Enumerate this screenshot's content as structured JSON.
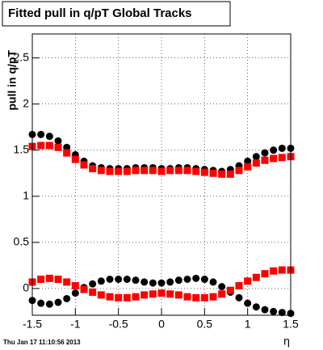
{
  "chart_data": {
    "type": "scatter",
    "title": "Fitted pull in q/pT  Global Tracks",
    "y_label": "pull in q/pT",
    "x_label": "η",
    "footer": "Thu Jan 17 11:10:56 2013",
    "x": [
      -1.5,
      -1.4,
      -1.3,
      -1.2,
      -1.1,
      -1.0,
      -0.9,
      -0.8,
      -0.7,
      -0.6,
      -0.5,
      -0.4,
      -0.3,
      -0.2,
      -0.1,
      0,
      0.1,
      0.2,
      0.3,
      0.4,
      0.5,
      0.6,
      0.7,
      0.8,
      0.9,
      1.0,
      1.1,
      1.2,
      1.3,
      1.4,
      1.5
    ],
    "series": [
      {
        "color": "#000000",
        "marker": "circle",
        "values": [
          1.67,
          1.67,
          1.65,
          1.6,
          1.53,
          1.45,
          1.38,
          1.33,
          1.31,
          1.3,
          1.3,
          1.3,
          1.31,
          1.31,
          1.31,
          1.3,
          1.3,
          1.31,
          1.31,
          1.3,
          1.29,
          1.28,
          1.27,
          1.29,
          1.33,
          1.38,
          1.43,
          1.47,
          1.5,
          1.52,
          1.52
        ]
      },
      {
        "color": "#ff0000",
        "marker": "square",
        "values": [
          1.54,
          1.55,
          1.55,
          1.53,
          1.47,
          1.4,
          1.34,
          1.3,
          1.28,
          1.27,
          1.27,
          1.27,
          1.28,
          1.28,
          1.28,
          1.27,
          1.28,
          1.28,
          1.28,
          1.27,
          1.26,
          1.25,
          1.24,
          1.24,
          1.28,
          1.32,
          1.36,
          1.39,
          1.41,
          1.42,
          1.43
        ]
      },
      {
        "color": "#000000",
        "marker": "circle",
        "values": [
          -0.13,
          -0.16,
          -0.17,
          -0.15,
          -0.11,
          -0.05,
          0.01,
          0.05,
          0.08,
          0.1,
          0.1,
          0.1,
          0.09,
          0.07,
          0.06,
          0.06,
          0.07,
          0.09,
          0.1,
          0.11,
          0.1,
          0.07,
          0.02,
          -0.04,
          -0.1,
          -0.16,
          -0.2,
          -0.23,
          -0.25,
          -0.26,
          -0.27
        ]
      },
      {
        "color": "#ff0000",
        "marker": "square",
        "values": [
          0.07,
          0.1,
          0.11,
          0.1,
          0.07,
          0.03,
          -0.01,
          -0.04,
          -0.07,
          -0.09,
          -0.1,
          -0.1,
          -0.09,
          -0.07,
          -0.06,
          -0.05,
          -0.06,
          -0.07,
          -0.09,
          -0.1,
          -0.1,
          -0.09,
          -0.06,
          -0.02,
          0.03,
          0.08,
          0.12,
          0.16,
          0.19,
          0.2,
          0.2
        ]
      }
    ],
    "xlim": [
      -1.5,
      1.5
    ],
    "xticks": [
      -1.5,
      -1,
      -0.5,
      0,
      0.5,
      1,
      1.5
    ],
    "ylim": [
      -0.29,
      2.76
    ],
    "yticks": [
      0,
      0.5,
      1,
      1.5,
      2,
      2.5
    ],
    "grid": true
  }
}
